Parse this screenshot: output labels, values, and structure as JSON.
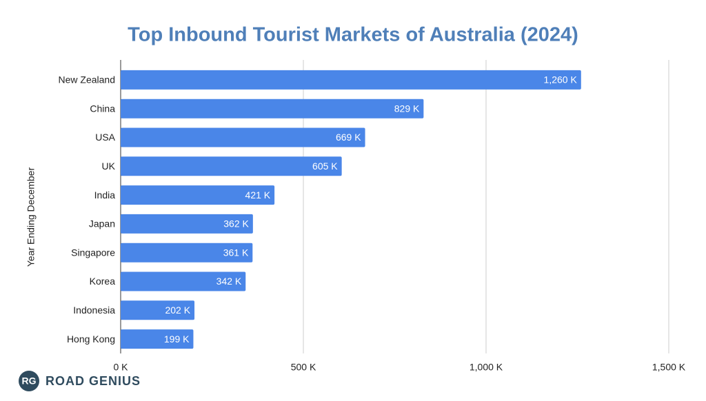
{
  "chart_data": {
    "type": "bar",
    "orientation": "horizontal",
    "title": "Top Inbound Tourist Markets of Australia (2024)",
    "y_label": "Year Ending December",
    "categories": [
      "New Zealand",
      "China",
      "USA",
      "UK",
      "India",
      "Japan",
      "Singapore",
      "Korea",
      "Indonesia",
      "Hong Kong"
    ],
    "values": [
      1260,
      829,
      669,
      605,
      421,
      362,
      361,
      342,
      202,
      199
    ],
    "value_labels": [
      "1,260 K",
      "829 K",
      "669 K",
      "605 K",
      "421 K",
      "362 K",
      "361 K",
      "342 K",
      "202 K",
      "199 K"
    ],
    "color": "#4a86e8",
    "xlim": [
      0,
      1500
    ],
    "xticks": [
      {
        "value": 0,
        "label": "0 K"
      },
      {
        "value": 500,
        "label": "500 K"
      },
      {
        "value": 1000,
        "label": "1,000 K"
      },
      {
        "value": 1500,
        "label": "1,500 K"
      }
    ],
    "grid": true
  },
  "logo": {
    "badge": "RG",
    "text": "ROAD GENIUS"
  }
}
